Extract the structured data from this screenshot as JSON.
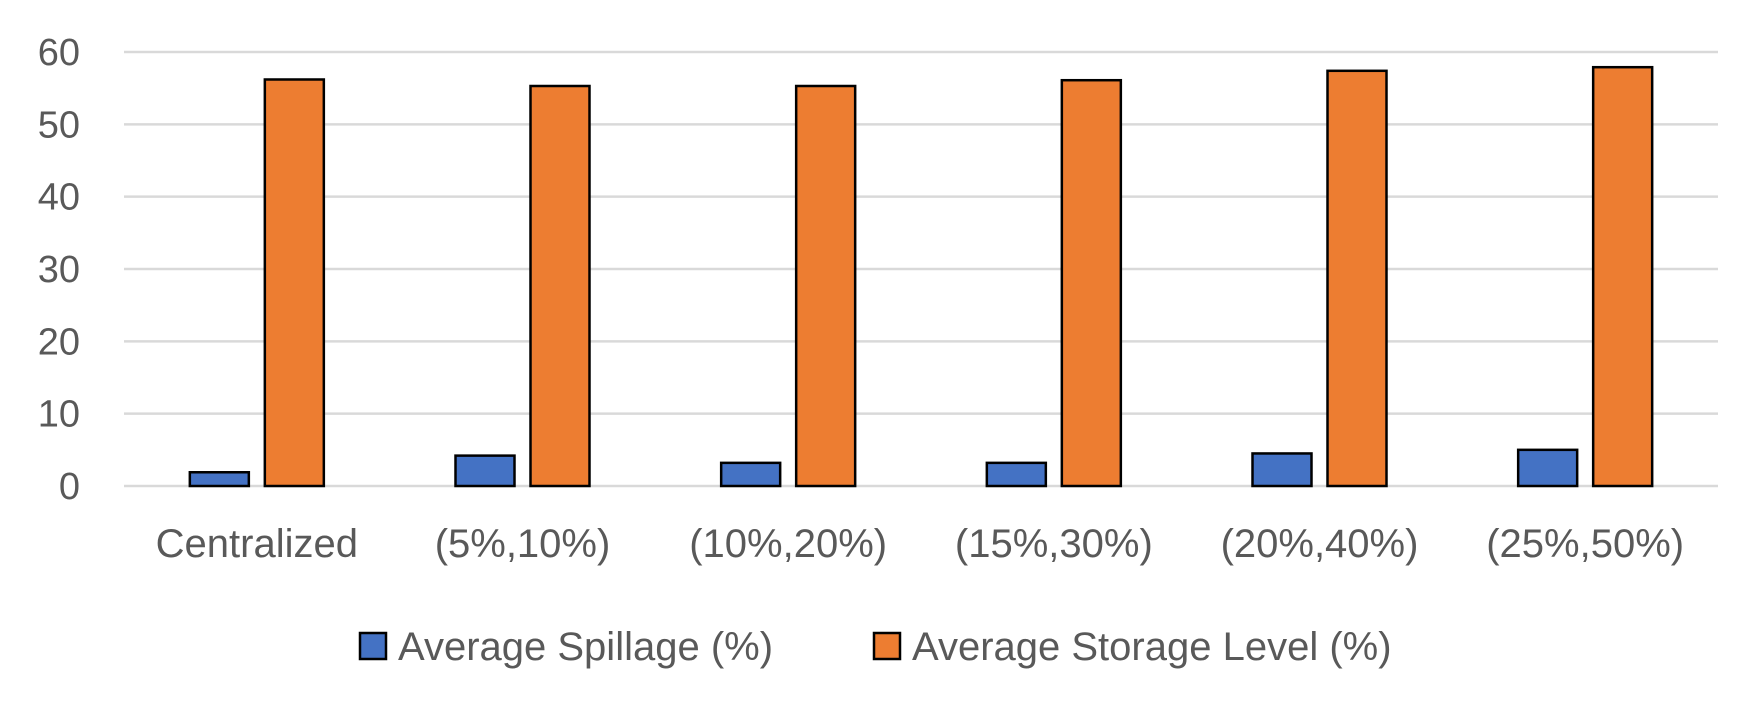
{
  "chart_data": {
    "type": "bar",
    "title": "",
    "xlabel": "",
    "ylabel": "",
    "categories": [
      "Centralized",
      "(5%,10%)",
      "(10%,20%)",
      "(15%,30%)",
      "(20%,40%)",
      "(25%,50%)"
    ],
    "series": [
      {
        "name": "Average Spillage (%)",
        "color": "#4472c4",
        "values": [
          1.9,
          4.2,
          3.2,
          3.2,
          4.5,
          5.0
        ]
      },
      {
        "name": "Average Storage Level (%)",
        "color": "#ed7d31",
        "values": [
          56.2,
          55.3,
          55.3,
          56.1,
          57.4,
          57.9
        ]
      }
    ],
    "ylim": [
      0,
      60
    ],
    "yticks": [
      "0",
      "10",
      "20",
      "30",
      "40",
      "50",
      "60"
    ],
    "grid": true,
    "legend_position": "bottom"
  }
}
